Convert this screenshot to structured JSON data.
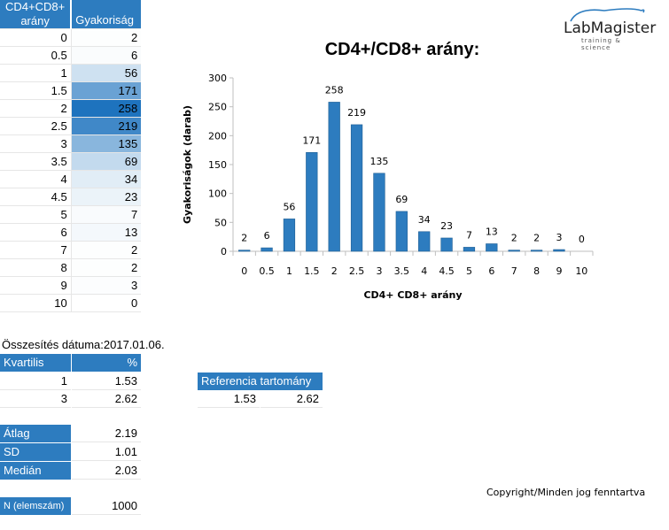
{
  "table": {
    "col1_header": "CD4+CD8+ arány",
    "col2_header": "Gyakoriság",
    "rows": [
      {
        "ratio": "0",
        "freq": "2"
      },
      {
        "ratio": "0.5",
        "freq": "6"
      },
      {
        "ratio": "1",
        "freq": "56"
      },
      {
        "ratio": "1.5",
        "freq": "171"
      },
      {
        "ratio": "2",
        "freq": "258"
      },
      {
        "ratio": "2.5",
        "freq": "219"
      },
      {
        "ratio": "3",
        "freq": "135"
      },
      {
        "ratio": "3.5",
        "freq": "69"
      },
      {
        "ratio": "4",
        "freq": "34"
      },
      {
        "ratio": "4.5",
        "freq": "23"
      },
      {
        "ratio": "5",
        "freq": "7"
      },
      {
        "ratio": "6",
        "freq": "13"
      },
      {
        "ratio": "7",
        "freq": "2"
      },
      {
        "ratio": "8",
        "freq": "2"
      },
      {
        "ratio": "9",
        "freq": "3"
      },
      {
        "ratio": "10",
        "freq": "0"
      }
    ]
  },
  "summary": {
    "date_label": "Összesítés dátuma:2017.01.06.",
    "quartile_header": "Kvartilis",
    "percent_header": "%",
    "quartiles": [
      {
        "q": "1",
        "value": "1.53"
      },
      {
        "q": "3",
        "value": "2.62"
      }
    ],
    "reference_header": "Referencia tartomány",
    "reference_low": "1.53",
    "reference_high": "2.62",
    "mean_label": "Átlag",
    "mean_value": "2.19",
    "sd_label": "SD",
    "sd_value": "1.01",
    "median_label": "Medián",
    "median_value": "2.03",
    "n_label": "N (elemszám)",
    "n_value": "1000"
  },
  "logo": {
    "name": "LabMagister",
    "tagline": "training & science"
  },
  "copyright": "Copyright/Minden jog fenntartva",
  "colors": {
    "header_blue": "#2d7cbf",
    "bar_blue": "#2d7cbf"
  },
  "chart_data": {
    "type": "bar",
    "title": "CD4+/CD8+ arány:",
    "xlabel": "CD4+ CD8+  arány",
    "ylabel": "Gyakoriságok  (darab)",
    "categories": [
      "0",
      "0.5",
      "1",
      "1.5",
      "2",
      "2.5",
      "3",
      "3.5",
      "4",
      "4.5",
      "5",
      "6",
      "7",
      "8",
      "9",
      "10"
    ],
    "values": [
      2,
      6,
      56,
      171,
      258,
      219,
      135,
      69,
      34,
      23,
      7,
      13,
      2,
      2,
      3,
      0
    ],
    "ylim": [
      0,
      300
    ],
    "yticks": [
      0,
      50,
      100,
      150,
      200,
      250,
      300
    ],
    "grid": false,
    "data_labels": true
  }
}
